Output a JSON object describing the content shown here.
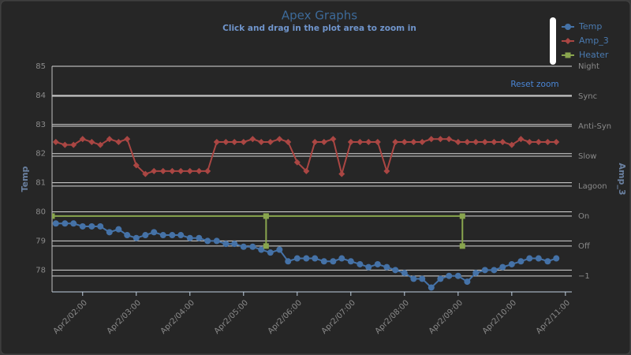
{
  "chart_data": {
    "type": "line",
    "title": "Apex Graphs",
    "subtitle": "Click and drag in the plot area to zoom in",
    "reset_button": "Reset zoom",
    "y_axis_title": "Temp",
    "y2_axis_title": "Amp_3",
    "x": [
      1.5,
      1.67,
      1.83,
      2,
      2.17,
      2.33,
      2.5,
      2.67,
      2.83,
      3,
      3.17,
      3.33,
      3.5,
      3.67,
      3.83,
      4,
      4.17,
      4.33,
      4.5,
      4.67,
      4.83,
      5,
      5.17,
      5.33,
      5.5,
      5.67,
      5.83,
      6,
      6.17,
      6.33,
      6.5,
      6.67,
      6.83,
      7,
      7.17,
      7.33,
      7.5,
      7.67,
      7.83,
      8,
      8.17,
      8.33,
      8.5,
      8.67,
      8.83,
      9,
      9.17,
      9.33,
      9.5,
      9.67,
      9.83,
      10,
      10.17,
      10.33,
      10.5,
      10.67,
      10.83
    ],
    "xlim": [
      1.43,
      11.12
    ],
    "xticks": [
      {
        "value": 2,
        "label": "Apr2/02:00"
      },
      {
        "value": 3,
        "label": "Apr2/03:00"
      },
      {
        "value": 4,
        "label": "Apr2/04:00"
      },
      {
        "value": 5,
        "label": "Apr2/05:00"
      },
      {
        "value": 6,
        "label": "Apr2/06:00"
      },
      {
        "value": 7,
        "label": "Apr2/07:00"
      },
      {
        "value": 8,
        "label": "Apr2/08:00"
      },
      {
        "value": 9,
        "label": "Apr2/09:00"
      },
      {
        "value": 10,
        "label": "Apr2/10:00"
      },
      {
        "value": 11,
        "label": "Apr2/11:00"
      }
    ],
    "ylim": [
      77.25,
      85
    ],
    "yticks": [
      78,
      79,
      80,
      81,
      82,
      83,
      84,
      85
    ],
    "y2lim": [
      -1.53,
      6
    ],
    "y2ticks": [
      {
        "value": -1,
        "label": "−1"
      },
      {
        "value": 0,
        "label": "Off"
      },
      {
        "value": 1,
        "label": "On"
      },
      {
        "value": 2,
        "label": "Lagoon"
      },
      {
        "value": 3,
        "label": "Slow"
      },
      {
        "value": 4,
        "label": "Anti-Syn"
      },
      {
        "value": 5,
        "label": "Sync"
      },
      {
        "value": 6,
        "label": "Night"
      }
    ],
    "grid": true,
    "legend": "top-right",
    "series": [
      {
        "name": "Temp",
        "color": "#4572a7",
        "marker": "circle",
        "values": [
          79.6,
          79.6,
          79.6,
          79.5,
          79.5,
          79.5,
          79.3,
          79.4,
          79.2,
          79.1,
          79.2,
          79.3,
          79.2,
          79.2,
          79.2,
          79.1,
          79.1,
          79.0,
          79.0,
          78.9,
          78.9,
          78.8,
          78.8,
          78.7,
          78.6,
          78.7,
          78.3,
          78.4,
          78.4,
          78.4,
          78.3,
          78.3,
          78.4,
          78.3,
          78.2,
          78.1,
          78.2,
          78.1,
          78.0,
          77.9,
          77.7,
          77.7,
          77.4,
          77.7,
          77.8,
          77.8,
          77.6,
          77.9,
          78.0,
          78.0,
          78.1,
          78.2,
          78.3,
          78.4,
          78.4,
          78.3,
          78.4
        ]
      },
      {
        "name": "Amp_3",
        "color": "#aa4643",
        "marker": "diamond",
        "values": [
          82.4,
          82.3,
          82.3,
          82.5,
          82.4,
          82.3,
          82.5,
          82.4,
          82.5,
          81.6,
          81.3,
          81.4,
          81.4,
          81.4,
          81.4,
          81.4,
          81.4,
          81.4,
          82.4,
          82.4,
          82.4,
          82.4,
          82.5,
          82.4,
          82.4,
          82.5,
          82.4,
          81.7,
          81.4,
          82.4,
          82.4,
          82.5,
          81.3,
          82.4,
          82.4,
          82.4,
          82.4,
          81.4,
          82.4,
          82.4,
          82.4,
          82.4,
          82.5,
          82.5,
          82.5,
          82.4,
          82.4,
          82.4,
          82.4,
          82.4,
          82.4,
          82.3,
          82.5,
          82.4,
          82.4,
          82.4,
          82.4
        ]
      },
      {
        "name": "Heater",
        "color": "#89a54e",
        "marker": "square",
        "axis": "y2",
        "x": [
          1.43,
          5.42,
          5.42,
          5.42,
          9.08,
          9.08
        ],
        "values": [
          1,
          1,
          0,
          1,
          1,
          0
        ]
      }
    ]
  }
}
